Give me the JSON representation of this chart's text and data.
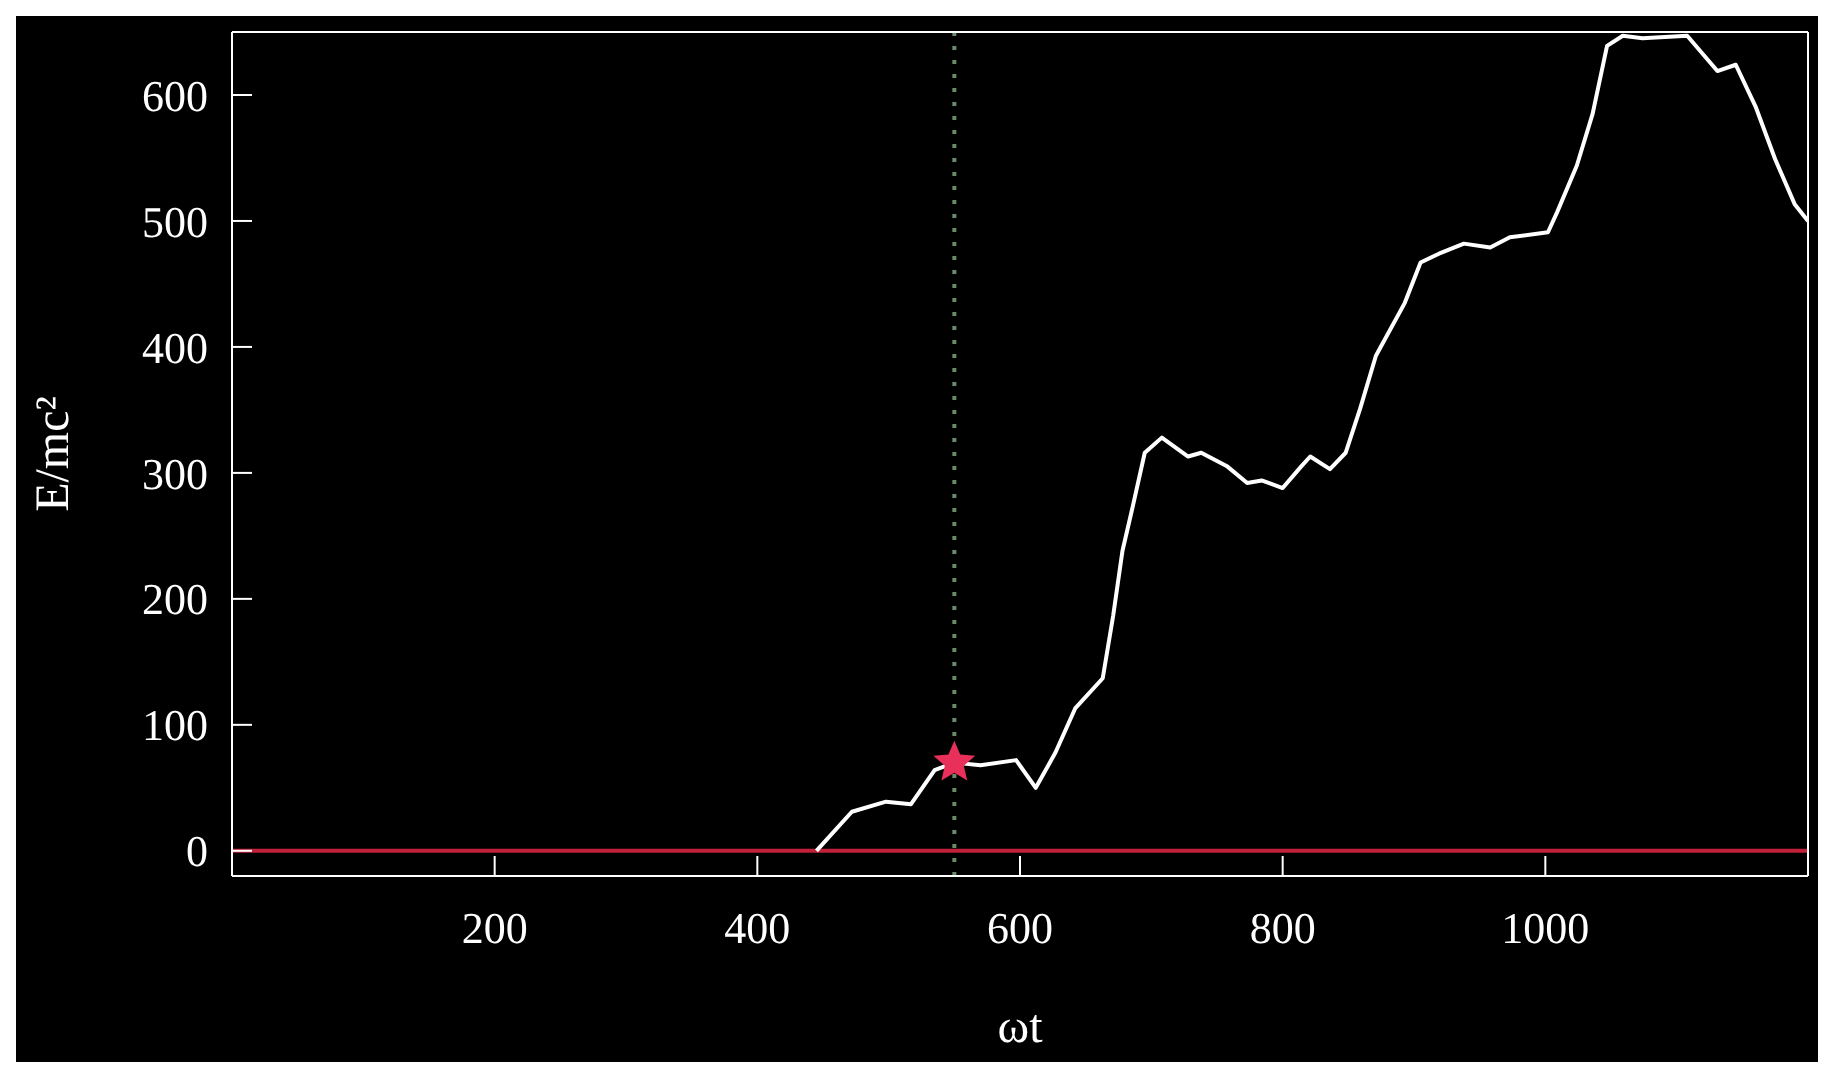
{
  "chart_data": {
    "type": "line",
    "xlabel": "ωt",
    "ylabel": "E/mc²",
    "xlim": [
      0,
      1200
    ],
    "xticks": [
      200,
      400,
      600,
      800,
      1000
    ],
    "ylim": [
      -20,
      650
    ],
    "yticks": [
      0,
      100,
      200,
      300,
      400,
      500,
      600
    ],
    "grid": false,
    "legend": false,
    "marker": "none",
    "line_style": "solid",
    "series": [
      {
        "color": "#ffffff",
        "x": [
          445,
          472,
          498,
          517,
          535,
          550,
          570,
          597,
          612,
          627,
          642,
          663,
          671,
          678,
          686,
          695,
          708,
          728,
          738,
          758,
          773,
          784,
          800,
          814,
          821,
          836,
          848,
          859,
          871,
          893,
          905,
          919,
          938,
          958,
          973,
          1002,
          1009,
          1024,
          1036,
          1047,
          1059,
          1074,
          1108,
          1131,
          1145,
          1160,
          1175,
          1190,
          1200
        ],
        "values": [
          0,
          31,
          39,
          37,
          64,
          70,
          68,
          72,
          50,
          78,
          113,
          137,
          187,
          238,
          274,
          316,
          328,
          313,
          316,
          305,
          292,
          294,
          288,
          305,
          313,
          303,
          316,
          351,
          393,
          435,
          467,
          474,
          482,
          479,
          487,
          491,
          507,
          544,
          585,
          639,
          647,
          645,
          647,
          619,
          624,
          591,
          549,
          513,
          500
        ]
      },
      {
        "type": "scatter",
        "color": "#e8305a",
        "marker": "star",
        "x": [
          550
        ],
        "values": [
          70
        ]
      }
    ],
    "ref_lines": [
      {
        "axis": "y",
        "value": 0,
        "color": "#c0203a",
        "line_style": "solid"
      },
      {
        "axis": "x",
        "value": 550,
        "color": "#6a8a6a",
        "line_style": "dotted"
      }
    ]
  }
}
